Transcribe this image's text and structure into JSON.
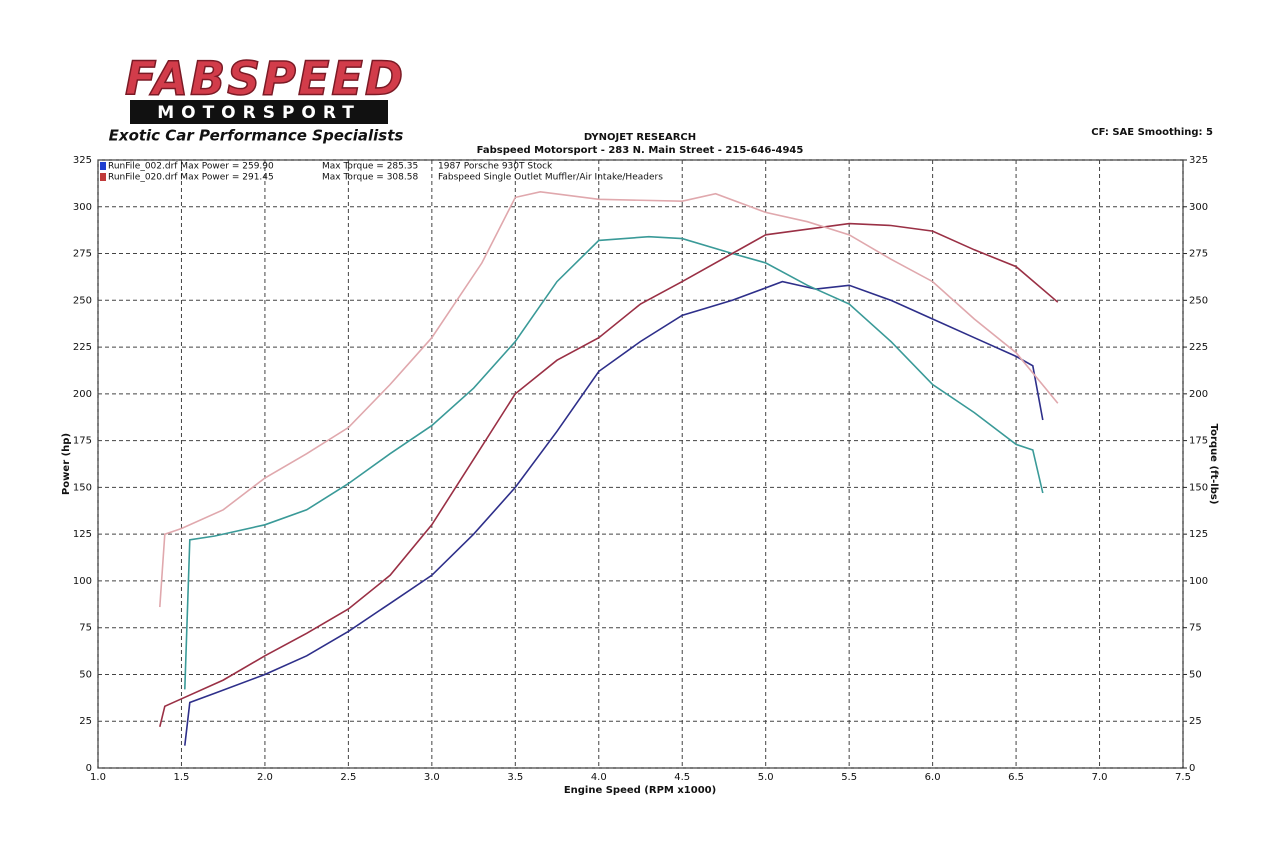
{
  "logo": {
    "brand": "FABSPEED",
    "sub": "MOTORSPORT",
    "tagline": "Exotic Car Performance Specialists"
  },
  "header": {
    "title": "DYNOJET RESEARCH",
    "subtitle": "Fabspeed Motorsport - 283 N. Main Street - 215-646-4945",
    "settings": "CF: SAE  Smoothing: 5"
  },
  "chart_data": {
    "type": "line",
    "x_label": "Engine Speed (RPM x1000)",
    "y_label": "Power (hp)",
    "y2_label": "Torque (ft-lbs)",
    "xlim": [
      1.0,
      7.5
    ],
    "xticks": [
      {
        "value": 1.0,
        "label": "1.0"
      },
      1.5,
      {
        "value": 2.0,
        "label": "2.0"
      },
      2.5,
      {
        "value": 3.0,
        "label": "3.0"
      },
      3.5,
      {
        "value": 4.0,
        "label": "4.0"
      },
      4.5,
      {
        "value": 5.0,
        "label": "5.0"
      },
      5.5,
      {
        "value": 6.0,
        "label": "6.0"
      },
      6.5,
      {
        "value": 7.0,
        "label": "7.0"
      },
      7.5
    ],
    "ylim": [
      0,
      325
    ],
    "yticks": [
      0,
      25,
      50,
      75,
      100,
      125,
      150,
      175,
      200,
      225,
      250,
      275,
      300,
      325
    ],
    "y2lim": [
      0,
      325
    ],
    "y2ticks": [
      0,
      25,
      50,
      75,
      100,
      125,
      150,
      175,
      200,
      225,
      250,
      275,
      300,
      325
    ],
    "grid": true,
    "legend": [
      {
        "file": "RunFile_002.drf Max Power = 259.90",
        "torque": "Max Torque = 285.35",
        "note": "1987 Porsche 930T Stock",
        "color": "#1f3fd0"
      },
      {
        "file": "RunFile_020.drf Max Power = 291.45",
        "torque": "Max Torque = 308.58",
        "note": "Fabspeed Single Outlet Muffler/Air Intake/Headers",
        "color": "#c03a3a"
      }
    ],
    "series": [
      {
        "color": "#2e2f8a",
        "x": [
          1.52,
          1.55,
          1.7,
          2.0,
          2.25,
          2.5,
          2.75,
          3.0,
          3.25,
          3.5,
          3.75,
          4.0,
          4.25,
          4.5,
          4.8,
          5.1,
          5.3,
          5.5,
          5.75,
          6.0,
          6.25,
          6.5,
          6.6,
          6.66
        ],
        "values": [
          12,
          35,
          40,
          50,
          60,
          73,
          88,
          103,
          125,
          150,
          180,
          212,
          228,
          242,
          250,
          260,
          256,
          258,
          250,
          240,
          230,
          220,
          215,
          186
        ]
      },
      {
        "color": "#3a9a98",
        "axis": "y2",
        "x": [
          1.52,
          1.55,
          1.7,
          2.0,
          2.25,
          2.5,
          2.75,
          3.0,
          3.25,
          3.5,
          3.75,
          4.0,
          4.3,
          4.5,
          4.8,
          5.0,
          5.25,
          5.5,
          5.75,
          6.0,
          6.25,
          6.5,
          6.6,
          6.66
        ],
        "values": [
          42,
          122,
          124,
          130,
          138,
          152,
          168,
          183,
          203,
          228,
          260,
          282,
          284,
          283,
          275,
          270,
          258,
          248,
          228,
          205,
          190,
          173,
          170,
          147
        ]
      },
      {
        "color": "#9a3045",
        "x": [
          1.37,
          1.4,
          1.5,
          1.75,
          2.0,
          2.25,
          2.5,
          2.75,
          3.0,
          3.25,
          3.5,
          3.75,
          4.0,
          4.25,
          4.5,
          4.8,
          5.0,
          5.25,
          5.5,
          5.75,
          6.0,
          6.25,
          6.5,
          6.75
        ],
        "values": [
          22,
          33,
          37,
          47,
          60,
          72,
          85,
          103,
          130,
          165,
          200,
          218,
          230,
          248,
          260,
          275,
          285,
          288,
          291,
          290,
          287,
          277,
          268,
          249
        ]
      },
      {
        "color": "#e0a8ad",
        "axis": "y2",
        "x": [
          1.37,
          1.4,
          1.5,
          1.75,
          2.0,
          2.25,
          2.5,
          2.75,
          3.0,
          3.3,
          3.5,
          3.65,
          4.0,
          4.5,
          4.7,
          5.0,
          5.25,
          5.5,
          5.75,
          6.0,
          6.25,
          6.5,
          6.75
        ],
        "values": [
          86,
          125,
          128,
          138,
          155,
          168,
          182,
          205,
          230,
          270,
          305,
          308,
          304,
          303,
          307,
          297,
          292,
          285,
          272,
          260,
          240,
          222,
          195
        ]
      }
    ]
  }
}
